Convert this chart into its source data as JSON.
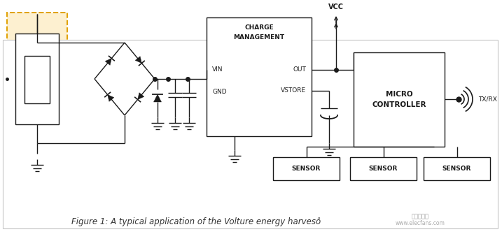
{
  "title": "Figure 1: A typical application of the Volture energy harvesô",
  "bg_color": "#ffffff",
  "border_color": "#c8c8c8",
  "fig_width": 7.17,
  "fig_height": 3.35,
  "dpi": 100,
  "lw": 1.0,
  "black": "#1a1a1a",
  "gray": "#888888",
  "orange_dashed": "#e0a000",
  "orange_fill": "#fdf0d0",
  "watermark_text": "www.elecfans.com",
  "watermark_cn": "电子发烧友",
  "charge_label1": "CHARGE",
  "charge_label2": "MANAGEMENT",
  "vin_label": "VIN",
  "gnd_label": "GND",
  "out_label": "OUT",
  "vstore_label": "VSTORE",
  "vcc_label": "VCC",
  "micro_label1": "MICRO",
  "micro_label2": "CONTROLLER",
  "txrx_label": "TX/RX",
  "sensor_label": "SENSOR"
}
